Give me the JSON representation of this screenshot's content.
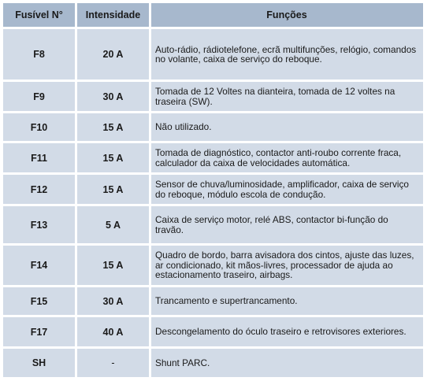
{
  "header": {
    "fuse": "Fusível N°",
    "intensity": "Intensidade",
    "functions": "Funções"
  },
  "rows": [
    {
      "fuse": "F8",
      "amp": "20 A",
      "func": "Auto-rádio, rádiotelefone, ecrã multifunções, relógio, comandos no volante, caixa de serviço do reboque."
    },
    {
      "fuse": "F9",
      "amp": "30 A",
      "func": "Tomada de 12 Voltes na dianteira, tomada de 12 voltes na traseira (SW)."
    },
    {
      "fuse": "F10",
      "amp": "15 A",
      "func": "Não utilizado."
    },
    {
      "fuse": "F11",
      "amp": "15 A",
      "func": "Tomada de diagnóstico, contactor anti-roubo corrente fraca, calculador da caixa de velocidades automática."
    },
    {
      "fuse": "F12",
      "amp": "15 A",
      "func": "Sensor de chuva/luminosidade, amplificador, caixa de serviço do reboque, módulo escola de condução."
    },
    {
      "fuse": "F13",
      "amp": "5 A",
      "func": "Caixa de serviço motor, relé ABS, contactor bi-função do travão."
    },
    {
      "fuse": "F14",
      "amp": "15 A",
      "func": "Quadro de bordo, barra avisadora dos cintos, ajuste das luzes, ar condicionado, kit mãos-livres, processador de ajuda ao estacionamento traseiro, airbags."
    },
    {
      "fuse": "F15",
      "amp": "30 A",
      "func": "Trancamento e supertrancamento."
    },
    {
      "fuse": "F17",
      "amp": "40 A",
      "func": "Descongelamento do óculo traseiro e retrovisores exteriores."
    },
    {
      "fuse": "SH",
      "amp": "-",
      "func": "Shunt PARC."
    }
  ]
}
